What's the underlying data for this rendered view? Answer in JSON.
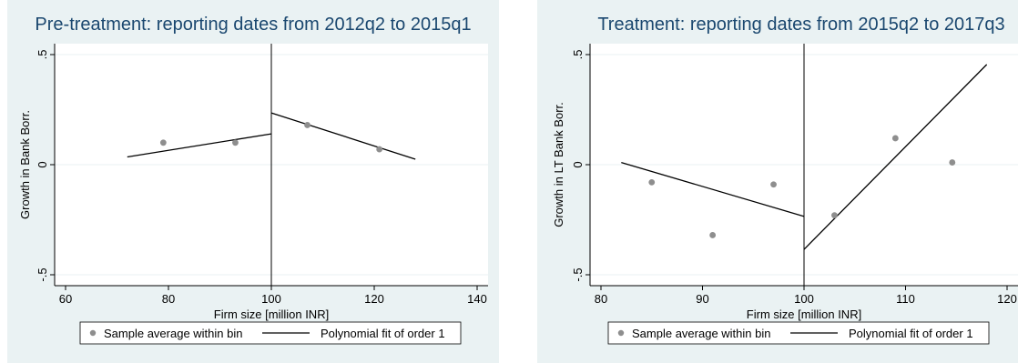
{
  "chart_data": [
    {
      "type": "scatter",
      "title": "Pre-treatment: reporting dates from 2012q2 to 2015q1",
      "xlabel": "Firm size [million INR]",
      "ylabel": "Growth in Bank Borr.",
      "xlim": [
        60,
        140
      ],
      "ylim": [
        -0.5,
        0.5
      ],
      "xticks": [
        60,
        80,
        100,
        120,
        140
      ],
      "yticks": [
        -0.5,
        0,
        0.5
      ],
      "ytick_labels": [
        "-.5",
        "0",
        ".5"
      ],
      "cutoff": 100,
      "series": [
        {
          "name": "Sample average within bin",
          "x": [
            79,
            93,
            107,
            121
          ],
          "y": [
            0.1,
            0.1,
            0.18,
            0.07
          ]
        },
        {
          "name": "Polynomial fit of order 1",
          "segments": [
            {
              "x": [
                72,
                100
              ],
              "y": [
                0.035,
                0.14
              ]
            },
            {
              "x": [
                100,
                128
              ],
              "y": [
                0.235,
                0.025
              ]
            }
          ]
        }
      ],
      "legend": [
        "Sample average within bin",
        "Polynomial fit of order 1"
      ],
      "legend_position": "bottom"
    },
    {
      "type": "scatter",
      "title": "Treatment: reporting dates from 2015q2 to 2017q3",
      "xlabel": "Firm size [million INR]",
      "ylabel": "Growth in LT Bank Borr.",
      "xlim": [
        80,
        120
      ],
      "ylim": [
        -0.5,
        0.5
      ],
      "xticks": [
        80,
        90,
        100,
        110,
        120
      ],
      "yticks": [
        -0.5,
        0,
        0.5
      ],
      "ytick_labels": [
        "-.5",
        "0",
        ".5"
      ],
      "cutoff": 100,
      "series": [
        {
          "name": "Sample average within bin",
          "x": [
            85,
            91,
            97,
            103,
            109,
            114.6
          ],
          "y": [
            -0.08,
            -0.32,
            -0.09,
            -0.23,
            0.12,
            0.01
          ]
        },
        {
          "name": "Polynomial fit of order 1",
          "segments": [
            {
              "x": [
                82,
                100
              ],
              "y": [
                0.01,
                -0.235
              ]
            },
            {
              "x": [
                100,
                118
              ],
              "y": [
                -0.385,
                0.455
              ]
            }
          ]
        }
      ],
      "legend": [
        "Sample average within bin",
        "Polynomial fit of order 1"
      ],
      "legend_position": "bottom"
    }
  ]
}
